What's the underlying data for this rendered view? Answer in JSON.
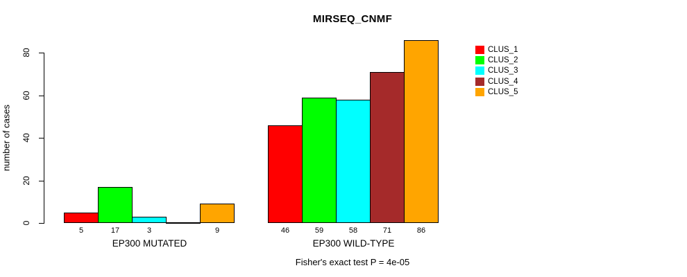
{
  "page": {
    "background": "#ffffff"
  },
  "chart_data": {
    "type": "bar",
    "title": "MIRSEQ_CNMF",
    "xlabel": "",
    "ylabel": "number of cases",
    "ylim": [
      0,
      88
    ],
    "yticks": [
      0,
      20,
      40,
      60,
      80
    ],
    "grid": false,
    "legend_position": "right",
    "categories": [
      "EP300 MUTATED",
      "EP300 WILD-TYPE"
    ],
    "series": [
      {
        "name": "CLUS_1",
        "color": "#FF0000",
        "values": [
          5,
          46
        ]
      },
      {
        "name": "CLUS_2",
        "color": "#00FF00",
        "values": [
          17,
          59
        ]
      },
      {
        "name": "CLUS_3",
        "color": "#00FFFF",
        "values": [
          3,
          58
        ]
      },
      {
        "name": "CLUS_4",
        "color": "#A52A2A",
        "values": [
          0,
          71
        ]
      },
      {
        "name": "CLUS_5",
        "color": "#FFA500",
        "values": [
          9,
          86
        ]
      }
    ],
    "bar_value_labels": [
      [
        "5",
        "17",
        "3",
        "",
        "9"
      ],
      [
        "46",
        "59",
        "58",
        "71",
        "86"
      ]
    ],
    "annotation": "Fisher's exact test P = 4e-05"
  }
}
